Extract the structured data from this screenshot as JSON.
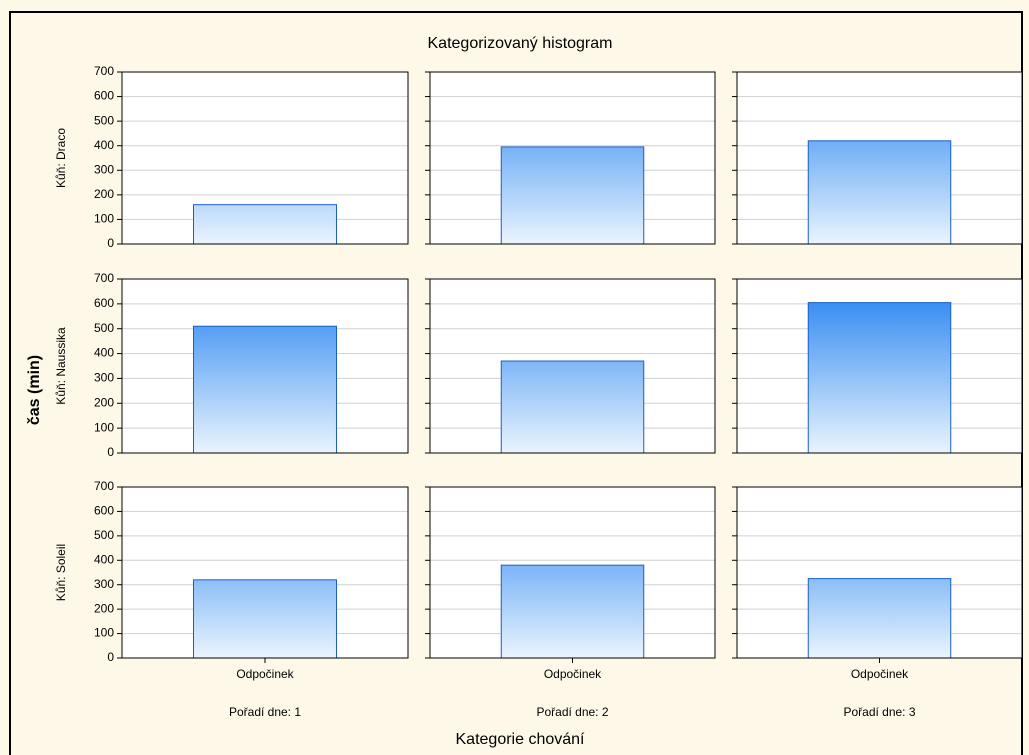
{
  "chart_data": {
    "type": "bar",
    "title": "Kategorizovaný histogram",
    "xlabel": "Kategorie chování",
    "ylabel": "čas (min)",
    "row_labels": [
      "Kůň: Draco",
      "Kůň: Naussika",
      "Kůň: Soleil"
    ],
    "column_labels": [
      "Pořadí dne: 1",
      "Pořadí dne: 2",
      "Pořadí dne: 3"
    ],
    "categories": [
      "Odpočinek"
    ],
    "values": [
      [
        160,
        395,
        420
      ],
      [
        510,
        370,
        605
      ],
      [
        320,
        380,
        325
      ]
    ],
    "color": "#1e7ff0",
    "ylim": [
      0,
      700
    ],
    "yticks": [
      0,
      100,
      200,
      300,
      400,
      500,
      600,
      700
    ],
    "grid": true
  }
}
